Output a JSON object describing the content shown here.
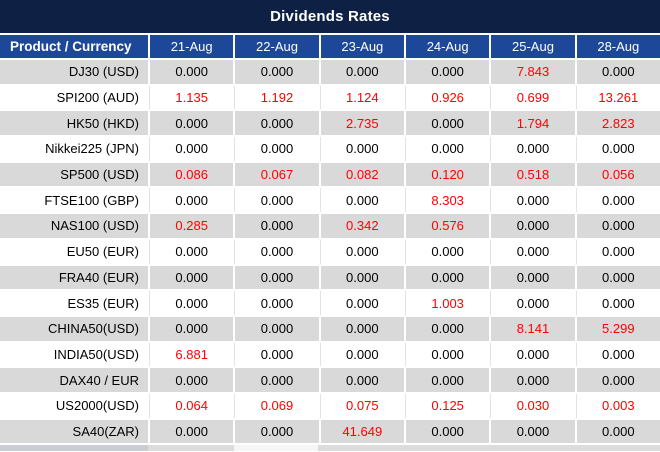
{
  "title": "Dividends Rates",
  "colors": {
    "title_bar": "#0E2145",
    "header_blue": "#1D4899",
    "gray_row": "#D9D9D9",
    "white_row": "#FFFFFF",
    "value_zero_text": "#000000",
    "value_nonzero_text": "#FF0000",
    "header_text": "#FFFFFF"
  },
  "table": {
    "zero_value": "0.000",
    "header": [
      "Product / Currency",
      "21-Aug",
      "22-Aug",
      "23-Aug",
      "24-Aug",
      "25-Aug",
      "28-Aug"
    ],
    "rows": [
      {
        "label": "DJ30 (USD)",
        "values": [
          "0.000",
          "0.000",
          "0.000",
          "0.000",
          "7.843",
          "0.000"
        ]
      },
      {
        "label": "SPI200 (AUD)",
        "values": [
          "1.135",
          "1.192",
          "1.124",
          "0.926",
          "0.699",
          "13.261"
        ]
      },
      {
        "label": "HK50 (HKD)",
        "values": [
          "0.000",
          "0.000",
          "2.735",
          "0.000",
          "1.794",
          "2.823"
        ]
      },
      {
        "label": "Nikkei225 (JPN)",
        "values": [
          "0.000",
          "0.000",
          "0.000",
          "0.000",
          "0.000",
          "0.000"
        ]
      },
      {
        "label": "SP500 (USD)",
        "values": [
          "0.086",
          "0.067",
          "0.082",
          "0.120",
          "0.518",
          "0.056"
        ]
      },
      {
        "label": "FTSE100 (GBP)",
        "values": [
          "0.000",
          "0.000",
          "0.000",
          "8.303",
          "0.000",
          "0.000"
        ]
      },
      {
        "label": "NAS100 (USD)",
        "values": [
          "0.285",
          "0.000",
          "0.342",
          "0.576",
          "0.000",
          "0.000"
        ]
      },
      {
        "label": "EU50 (EUR)",
        "values": [
          "0.000",
          "0.000",
          "0.000",
          "0.000",
          "0.000",
          "0.000"
        ]
      },
      {
        "label": "FRA40 (EUR)",
        "values": [
          "0.000",
          "0.000",
          "0.000",
          "0.000",
          "0.000",
          "0.000"
        ]
      },
      {
        "label": "ES35 (EUR)",
        "values": [
          "0.000",
          "0.000",
          "0.000",
          "1.003",
          "0.000",
          "0.000"
        ]
      },
      {
        "label": "CHINA50(USD)",
        "values": [
          "0.000",
          "0.000",
          "0.000",
          "0.000",
          "8.141",
          "5.299"
        ]
      },
      {
        "label": "INDIA50(USD)",
        "values": [
          "6.881",
          "0.000",
          "0.000",
          "0.000",
          "0.000",
          "0.000"
        ]
      },
      {
        "label": "DAX40 / EUR",
        "values": [
          "0.000",
          "0.000",
          "0.000",
          "0.000",
          "0.000",
          "0.000"
        ]
      },
      {
        "label": "US2000(USD)",
        "values": [
          "0.064",
          "0.069",
          "0.075",
          "0.125",
          "0.030",
          "0.003"
        ]
      },
      {
        "label": "SA40(ZAR)",
        "values": [
          "0.000",
          "0.000",
          "41.649",
          "0.000",
          "0.000",
          "0.000"
        ]
      }
    ]
  }
}
